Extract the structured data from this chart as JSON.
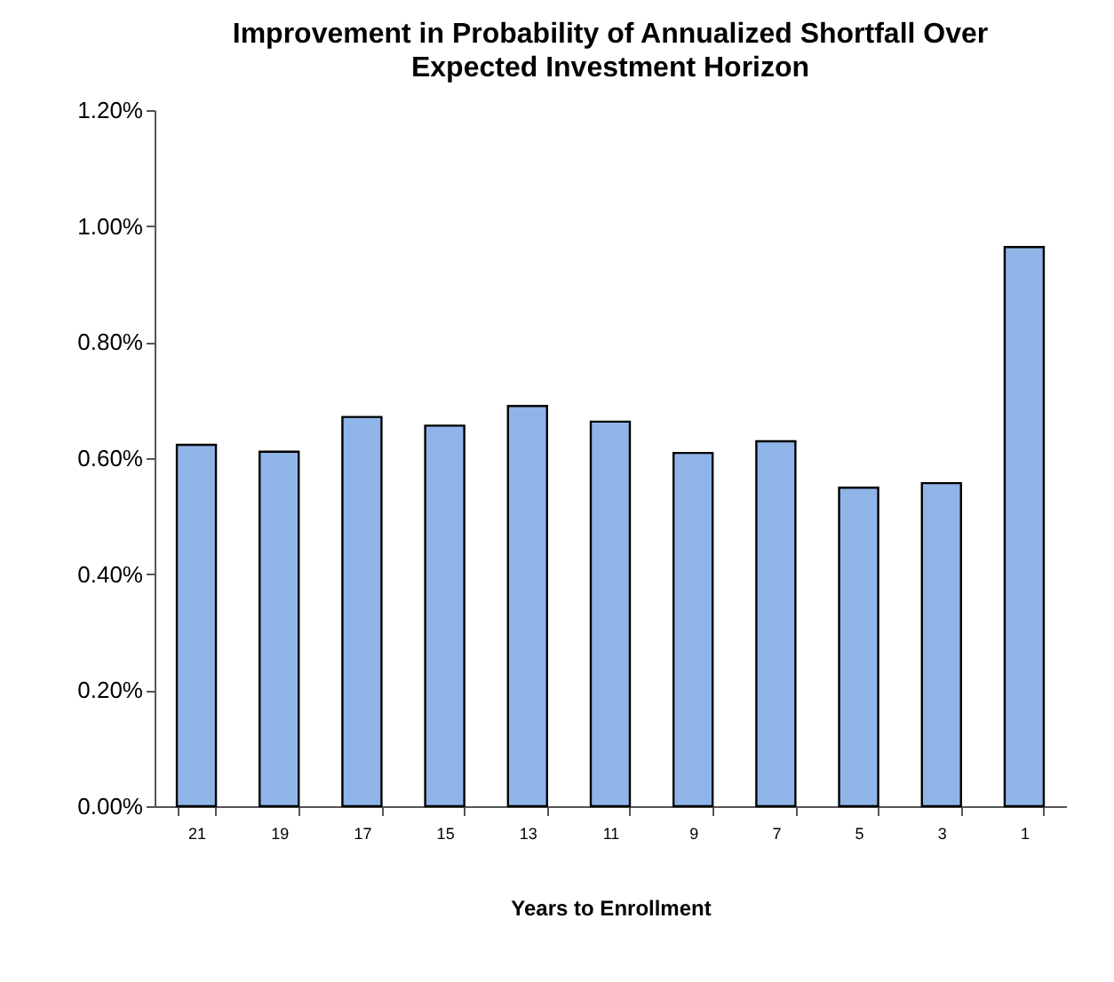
{
  "chart_data": {
    "type": "bar",
    "title": [
      "Improvement in Probability of Annualized Shortfall Over",
      "Expected Investment Horizon"
    ],
    "xlabel": "Years to Enrollment",
    "categories": [
      "21",
      "19",
      "17",
      "15",
      "13",
      "11",
      "9",
      "7",
      "5",
      "3",
      "1"
    ],
    "values": [
      0.623,
      0.611,
      0.671,
      0.656,
      0.69,
      0.663,
      0.609,
      0.629,
      0.549,
      0.557,
      0.964
    ],
    "color": "#8fb4e8",
    "ylim": [
      0,
      1.2
    ],
    "yticks": [
      {
        "value": 0,
        "label": "0.00%"
      },
      {
        "value": 0.2,
        "label": "0.20%"
      },
      {
        "value": 0.4,
        "label": "0.40%"
      },
      {
        "value": 0.6,
        "label": "0.60%"
      },
      {
        "value": 0.8,
        "label": "0.80%"
      },
      {
        "value": 1.0,
        "label": "1.00%"
      },
      {
        "value": 1.2,
        "label": "1.20%"
      }
    ],
    "grid": false,
    "legend": false
  }
}
